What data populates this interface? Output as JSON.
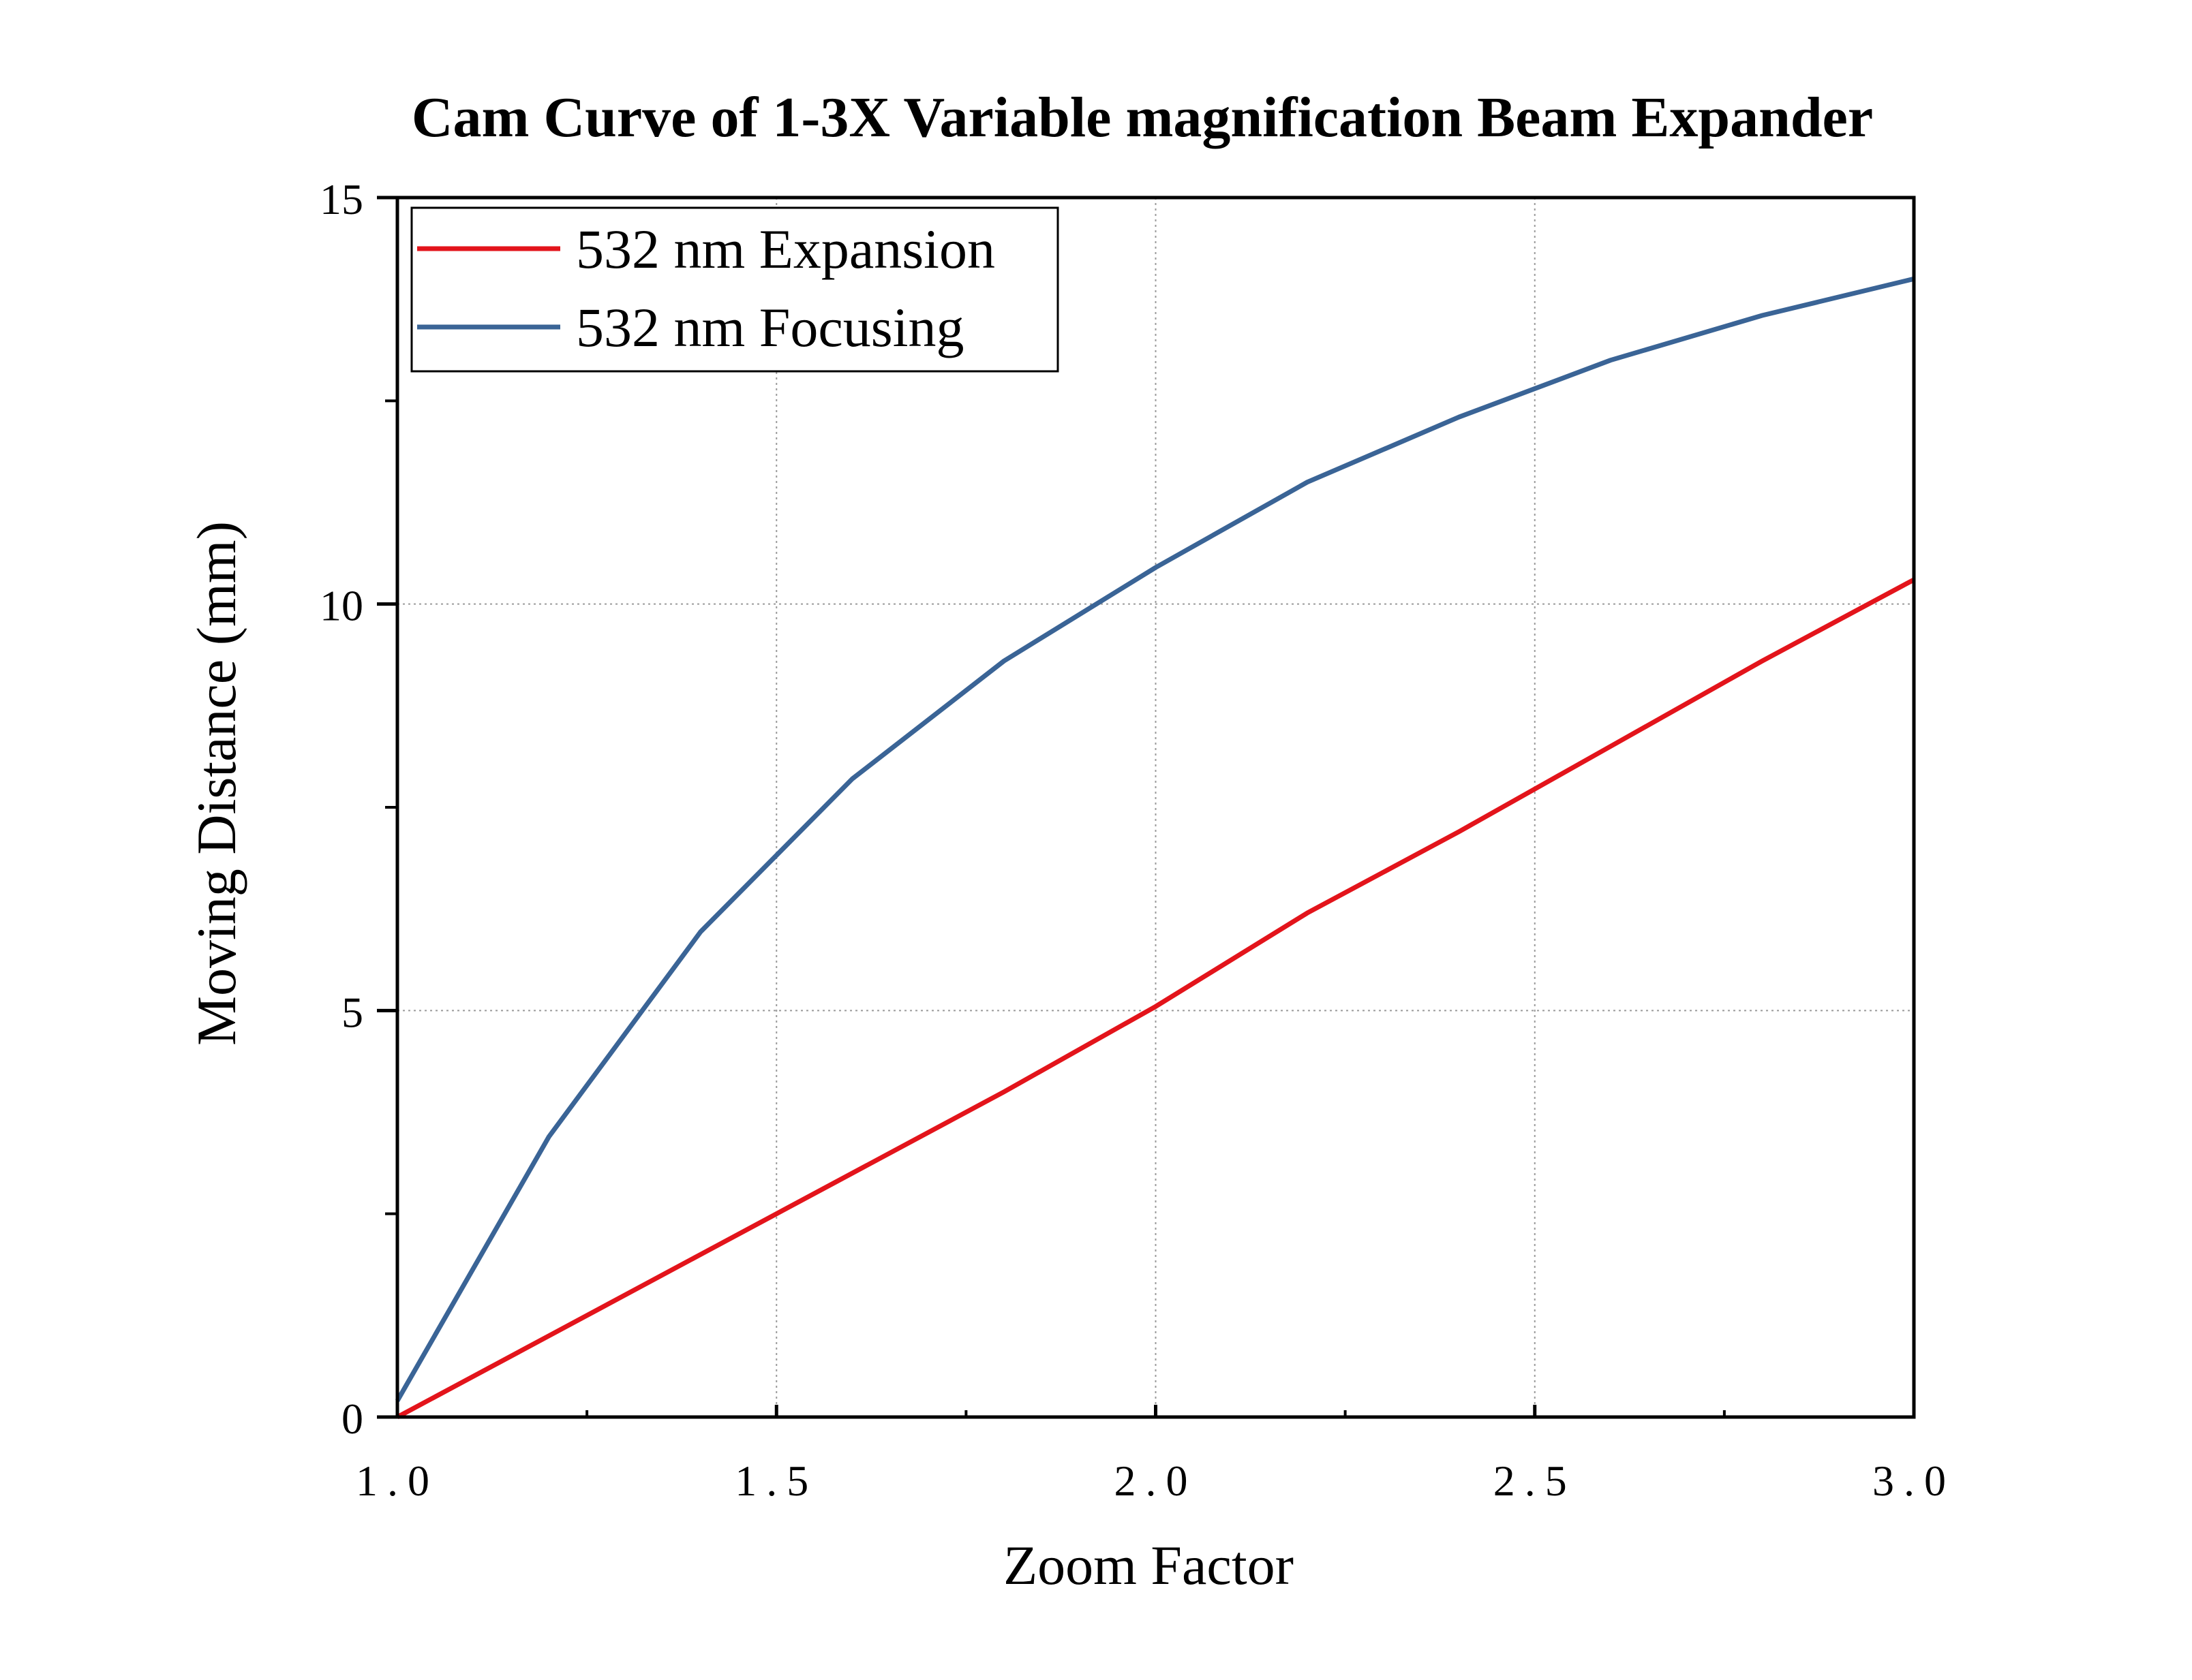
{
  "chart_data": {
    "type": "line",
    "title": "Cam Curve of 1-3X Variable magnification Beam Expander",
    "xlabel": "Zoom Factor",
    "ylabel": "Moving Distance (mm)",
    "xlim": [
      1.0,
      3.0
    ],
    "ylim": [
      0,
      15
    ],
    "xticks": [
      1.0,
      1.5,
      2.0,
      2.5,
      3.0
    ],
    "xtick_labels": [
      "1.0",
      "1.5",
      "2.0",
      "2.5",
      "3.0"
    ],
    "yticks": [
      0,
      5,
      10,
      15
    ],
    "ytick_labels": [
      "0",
      "5",
      "10",
      "15"
    ],
    "grid": true,
    "legend_position": "top-left",
    "series": [
      {
        "name": "532 nm Expansion",
        "color": "#e3141b",
        "x": [
          1.0,
          1.2,
          1.4,
          1.6,
          1.8,
          2.0,
          2.2,
          2.4,
          2.6,
          2.8,
          3.0
        ],
        "y": [
          0.0,
          1.0,
          2.0,
          3.0,
          4.0,
          5.05,
          6.2,
          7.2,
          8.25,
          9.3,
          10.3
        ]
      },
      {
        "name": "532 nm Focusing",
        "color": "#3a6496",
        "x": [
          1.0,
          1.2,
          1.4,
          1.6,
          1.8,
          2.0,
          2.2,
          2.4,
          2.6,
          2.8,
          3.0
        ],
        "y": [
          0.2,
          3.45,
          5.97,
          7.85,
          9.3,
          10.45,
          11.5,
          12.3,
          13.0,
          13.55,
          14.0
        ]
      }
    ]
  }
}
